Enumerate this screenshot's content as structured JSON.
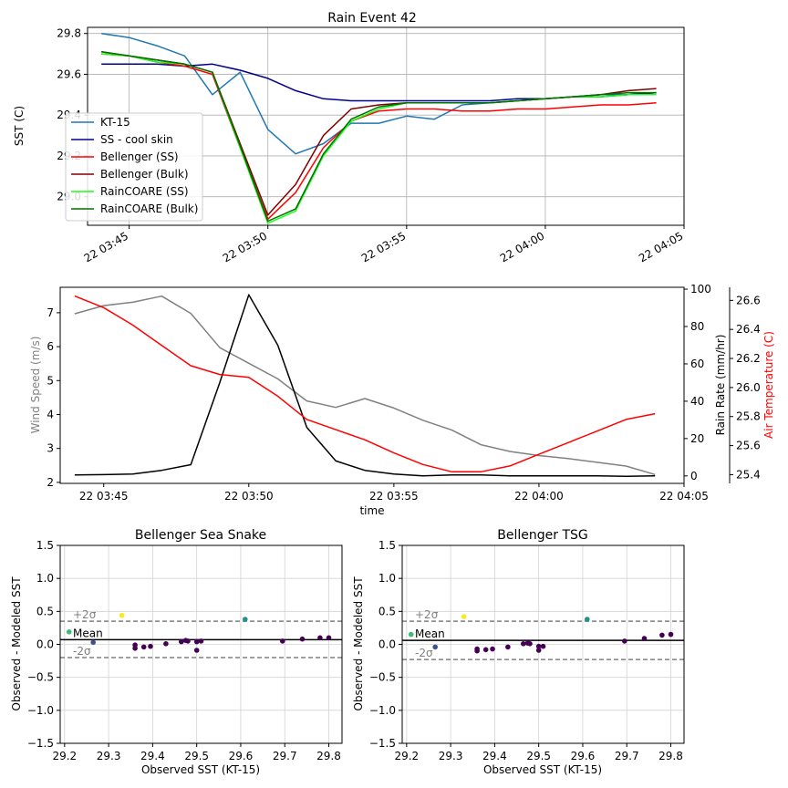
{
  "chart_data": [
    {
      "type": "line",
      "title": "Rain Event 42",
      "xlabel": "",
      "ylabel": "SST (C)",
      "xlim": [
        "22 03:43:30",
        "22 04:05:00"
      ],
      "ylim": [
        28.86,
        29.83
      ],
      "x_ticks": [
        "22 03:45",
        "22 03:50",
        "22 03:55",
        "22 04:00",
        "22 04:05"
      ],
      "y_ticks": [
        "29.0",
        "29.2",
        "29.4",
        "29.6",
        "29.8"
      ],
      "grid": true,
      "legend_position": "lower-left",
      "x": [
        "03:44",
        "03:45",
        "03:46",
        "03:47",
        "03:48",
        "03:49",
        "03:50",
        "03:51",
        "03:52",
        "03:53",
        "03:54",
        "03:55",
        "03:56",
        "03:57",
        "03:58",
        "03:59",
        "04:00",
        "04:01",
        "04:02",
        "04:03",
        "04:04"
      ],
      "series": [
        {
          "name": "KT-15",
          "color": "#1f77b4",
          "values": [
            29.8,
            29.78,
            29.74,
            29.69,
            29.5,
            29.61,
            29.33,
            29.21,
            29.26,
            29.36,
            29.36,
            29.395,
            29.38,
            29.45,
            29.46,
            29.47,
            29.48,
            29.49,
            29.5,
            29.5,
            29.51
          ]
        },
        {
          "name": "SS - cool skin",
          "color": "#00008b",
          "values": [
            29.65,
            29.65,
            29.65,
            29.64,
            29.65,
            29.62,
            29.58,
            29.52,
            29.48,
            29.47,
            29.47,
            29.47,
            29.47,
            29.47,
            29.47,
            29.48,
            29.48,
            29.49,
            29.49,
            29.5,
            29.51
          ]
        },
        {
          "name": "Bellenger (SS)",
          "color": "#ff0000",
          "values": [
            29.7,
            29.69,
            29.66,
            29.64,
            29.6,
            29.24,
            28.89,
            29.02,
            29.24,
            29.37,
            29.42,
            29.43,
            29.43,
            29.42,
            29.42,
            29.43,
            29.43,
            29.44,
            29.45,
            29.45,
            29.46
          ]
        },
        {
          "name": "Bellenger (Bulk)",
          "color": "#800000",
          "values": [
            29.71,
            29.69,
            29.67,
            29.65,
            29.61,
            29.26,
            28.91,
            29.06,
            29.3,
            29.43,
            29.45,
            29.46,
            29.46,
            29.46,
            29.46,
            29.47,
            29.48,
            29.49,
            29.5,
            29.52,
            29.53
          ]
        },
        {
          "name": "RainCOARE (SS)",
          "color": "#1aff1a",
          "values": [
            29.7,
            29.69,
            29.66,
            29.65,
            29.61,
            29.24,
            28.87,
            28.93,
            29.2,
            29.37,
            29.43,
            29.46,
            29.46,
            29.46,
            29.46,
            29.47,
            29.48,
            29.49,
            29.49,
            29.5,
            29.5
          ]
        },
        {
          "name": "RainCOARE (Bulk)",
          "color": "#007000",
          "values": [
            29.71,
            29.69,
            29.67,
            29.65,
            29.61,
            29.25,
            28.88,
            28.94,
            29.21,
            29.38,
            29.44,
            29.46,
            29.46,
            29.46,
            29.46,
            29.47,
            29.48,
            29.49,
            29.5,
            29.51,
            29.51
          ]
        }
      ]
    },
    {
      "type": "line",
      "title": "",
      "xlabel": "time",
      "x_ticks": [
        "22 03:45",
        "22 03:50",
        "22 03:55",
        "22 04:00",
        "22 04:05"
      ],
      "xlim": [
        "22 03:43:30",
        "22 04:05:00"
      ],
      "y_axes": [
        {
          "label": "Wind Speed (m/s)",
          "label_color": "#808080",
          "side": "left",
          "ylim": [
            1.97,
            7.75
          ],
          "ticks": [
            "2",
            "3",
            "4",
            "5",
            "6",
            "7"
          ]
        },
        {
          "label": "Rain Rate (mm/hr)",
          "label_color": "#000000",
          "side": "right",
          "ylim": [
            -4,
            101
          ],
          "ticks": [
            "0",
            "20",
            "40",
            "60",
            "80",
            "100"
          ]
        },
        {
          "label": "Air Temperature (C)",
          "label_color": "#ff0000",
          "side": "right-outer",
          "ylim": [
            25.34,
            26.69
          ],
          "ticks": [
            "25.4",
            "25.6",
            "25.8",
            "26.0",
            "26.2",
            "26.4",
            "26.6"
          ]
        }
      ],
      "grid": false,
      "x": [
        "03:44",
        "03:45",
        "03:46",
        "03:47",
        "03:48",
        "03:49",
        "03:50",
        "03:51",
        "03:52",
        "03:53",
        "03:54",
        "03:55",
        "03:56",
        "03:57",
        "03:58",
        "03:59",
        "04:00",
        "04:01",
        "04:02",
        "04:03",
        "04:04"
      ],
      "series": [
        {
          "name": "",
          "axis": 0,
          "color": "#808080",
          "values": [
            6.97,
            7.21,
            7.31,
            7.49,
            6.98,
            5.97,
            5.51,
            5.05,
            4.4,
            4.21,
            4.47,
            4.19,
            3.83,
            3.54,
            3.11,
            2.91,
            2.79,
            2.7,
            2.59,
            2.48,
            2.23
          ]
        },
        {
          "name": "",
          "axis": 1,
          "color": "#000000",
          "values": [
            0.5,
            0.7,
            1,
            3,
            6,
            50,
            97,
            70,
            26,
            8,
            3,
            1,
            0,
            0.5,
            0.5,
            0,
            0,
            0,
            0,
            -0.2,
            0
          ]
        },
        {
          "name": "",
          "axis": 2,
          "color": "#ff0000",
          "values": [
            26.63,
            26.55,
            26.43,
            26.29,
            26.15,
            26.09,
            26.07,
            25.94,
            25.78,
            25.71,
            25.64,
            25.55,
            25.47,
            25.42,
            25.42,
            25.46,
            25.54,
            25.62,
            25.7,
            25.78,
            25.82
          ]
        }
      ]
    },
    {
      "type": "scatter",
      "title": "Bellenger Sea Snake",
      "xlabel": "Observed SST (KT-15)",
      "ylabel": "Observed - Modeled SST",
      "xlim": [
        29.19,
        29.83
      ],
      "ylim": [
        -1.5,
        1.5
      ],
      "x_ticks": [
        "29.2",
        "29.3",
        "29.4",
        "29.5",
        "29.6",
        "29.7",
        "29.8"
      ],
      "y_ticks": [
        "−1.5",
        "−1.0",
        "−0.5",
        "0.0",
        "0.5",
        "1.0",
        "1.5"
      ],
      "grid": true,
      "mean": 0.07,
      "plus2sigma": 0.35,
      "minus2sigma": -0.2,
      "mean_label": "Mean",
      "plus_label": "+2σ",
      "minus_label": "-2σ",
      "points": [
        {
          "x": 29.21,
          "y": 0.19,
          "c": "#3fbc73"
        },
        {
          "x": 29.265,
          "y": 0.03,
          "c": "#3b528b"
        },
        {
          "x": 29.33,
          "y": 0.44,
          "c": "#fde725"
        },
        {
          "x": 29.36,
          "y": -0.01,
          "c": "#440154"
        },
        {
          "x": 29.36,
          "y": -0.06,
          "c": "#440154"
        },
        {
          "x": 29.38,
          "y": -0.04,
          "c": "#440154"
        },
        {
          "x": 29.395,
          "y": -0.03,
          "c": "#440154"
        },
        {
          "x": 29.43,
          "y": 0.01,
          "c": "#440154"
        },
        {
          "x": 29.465,
          "y": 0.04,
          "c": "#440154"
        },
        {
          "x": 29.475,
          "y": 0.06,
          "c": "#440154"
        },
        {
          "x": 29.48,
          "y": 0.05,
          "c": "#440154"
        },
        {
          "x": 29.5,
          "y": -0.09,
          "c": "#440154"
        },
        {
          "x": 29.5,
          "y": 0.04,
          "c": "#440154"
        },
        {
          "x": 29.51,
          "y": 0.05,
          "c": "#440154"
        },
        {
          "x": 29.61,
          "y": 0.38,
          "c": "#21918c"
        },
        {
          "x": 29.695,
          "y": 0.05,
          "c": "#440154"
        },
        {
          "x": 29.74,
          "y": 0.08,
          "c": "#440154"
        },
        {
          "x": 29.78,
          "y": 0.1,
          "c": "#440154"
        },
        {
          "x": 29.8,
          "y": 0.1,
          "c": "#440154"
        }
      ]
    },
    {
      "type": "scatter",
      "title": "Bellenger TSG",
      "xlabel": "Observed SST (KT-15)",
      "ylabel": "Observed - Modeled SST",
      "xlim": [
        29.19,
        29.83
      ],
      "ylim": [
        -1.5,
        1.5
      ],
      "x_ticks": [
        "29.2",
        "29.3",
        "29.4",
        "29.5",
        "29.6",
        "29.7",
        "29.8"
      ],
      "y_ticks": [
        "−1.5",
        "−1.0",
        "−0.5",
        "0.0",
        "0.5",
        "1.0",
        "1.5"
      ],
      "grid": true,
      "mean": 0.06,
      "plus2sigma": 0.35,
      "minus2sigma": -0.23,
      "mean_label": "Mean",
      "plus_label": "+2σ",
      "minus_label": "-2σ",
      "points": [
        {
          "x": 29.21,
          "y": 0.15,
          "c": "#3fbc73"
        },
        {
          "x": 29.265,
          "y": -0.04,
          "c": "#3b528b"
        },
        {
          "x": 29.33,
          "y": 0.42,
          "c": "#fde725"
        },
        {
          "x": 29.36,
          "y": -0.07,
          "c": "#440154"
        },
        {
          "x": 29.36,
          "y": -0.1,
          "c": "#440154"
        },
        {
          "x": 29.38,
          "y": -0.08,
          "c": "#440154"
        },
        {
          "x": 29.395,
          "y": -0.07,
          "c": "#440154"
        },
        {
          "x": 29.43,
          "y": -0.04,
          "c": "#440154"
        },
        {
          "x": 29.465,
          "y": 0.01,
          "c": "#440154"
        },
        {
          "x": 29.475,
          "y": 0.02,
          "c": "#440154"
        },
        {
          "x": 29.48,
          "y": 0.01,
          "c": "#440154"
        },
        {
          "x": 29.5,
          "y": -0.03,
          "c": "#440154"
        },
        {
          "x": 29.5,
          "y": -0.09,
          "c": "#440154"
        },
        {
          "x": 29.51,
          "y": -0.03,
          "c": "#440154"
        },
        {
          "x": 29.61,
          "y": 0.38,
          "c": "#21918c"
        },
        {
          "x": 29.695,
          "y": 0.05,
          "c": "#440154"
        },
        {
          "x": 29.74,
          "y": 0.09,
          "c": "#440154"
        },
        {
          "x": 29.78,
          "y": 0.14,
          "c": "#440154"
        },
        {
          "x": 29.8,
          "y": 0.15,
          "c": "#440154"
        }
      ]
    }
  ]
}
